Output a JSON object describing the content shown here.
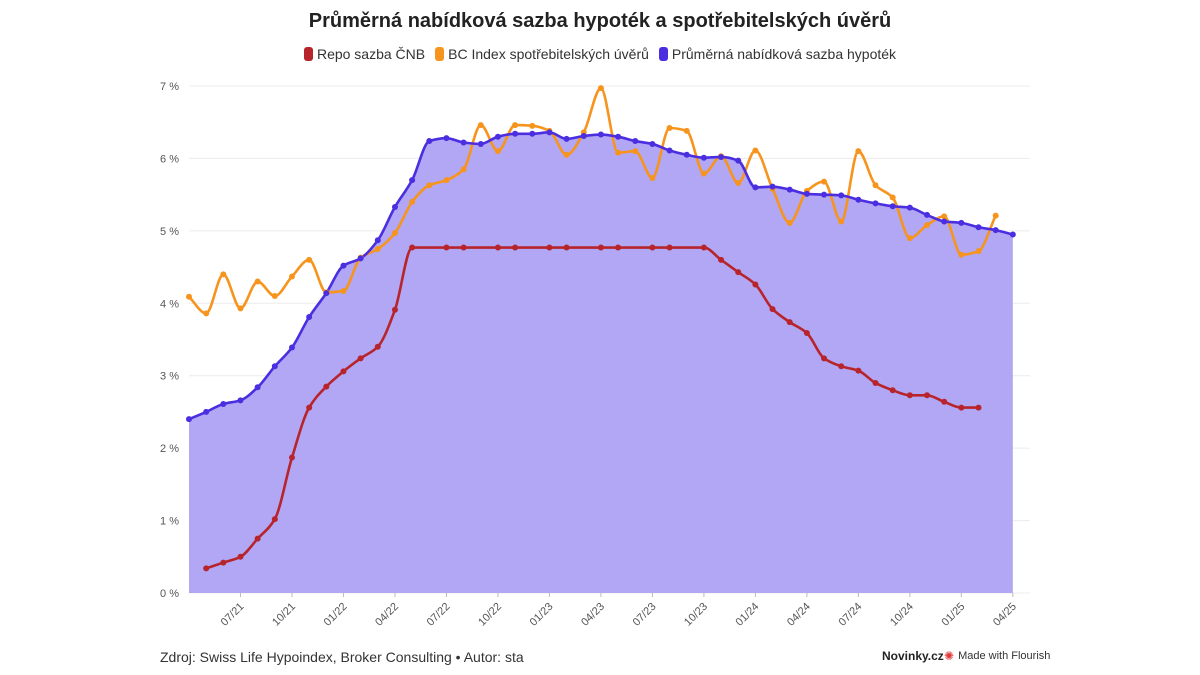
{
  "chart_data": {
    "type": "line",
    "title": "Průměrná nabídková sazba hypoték a spotřebitelských úvěrů",
    "ylim": [
      0,
      7
    ],
    "y_ticks": [
      0,
      1,
      2,
      3,
      4,
      5,
      6,
      7
    ],
    "y_tick_labels": [
      "0 %",
      "1 %",
      "2 %",
      "3 %",
      "4 %",
      "5 %",
      "6 %",
      "7 %"
    ],
    "x_range": [
      "2021-04",
      "2025-05"
    ],
    "x_ticks": [
      {
        "date": "2021-07",
        "label": "07/21"
      },
      {
        "date": "2021-10",
        "label": "10/21"
      },
      {
        "date": "2022-01",
        "label": "01/22"
      },
      {
        "date": "2022-04",
        "label": "04/22"
      },
      {
        "date": "2022-07",
        "label": "07/22"
      },
      {
        "date": "2022-10",
        "label": "10/22"
      },
      {
        "date": "2023-01",
        "label": "01/23"
      },
      {
        "date": "2023-04",
        "label": "04/23"
      },
      {
        "date": "2023-07",
        "label": "07/23"
      },
      {
        "date": "2023-10",
        "label": "10/23"
      },
      {
        "date": "2024-01",
        "label": "01/24"
      },
      {
        "date": "2024-04",
        "label": "04/24"
      },
      {
        "date": "2024-07",
        "label": "07/24"
      },
      {
        "date": "2024-10",
        "label": "10/24"
      },
      {
        "date": "2025-01",
        "label": "01/25"
      },
      {
        "date": "2025-04",
        "label": "04/25"
      }
    ],
    "legend_position": "top-center",
    "grid": true,
    "series": [
      {
        "name": "Repo sazba ČNB",
        "color": "#b8242b",
        "points": [
          [
            "2021-05",
            0.34
          ],
          [
            "2021-06",
            0.42
          ],
          [
            "2021-07",
            0.5
          ],
          [
            "2021-08",
            0.75
          ],
          [
            "2021-09",
            1.02
          ],
          [
            "2021-10",
            1.87
          ],
          [
            "2021-11",
            2.56
          ],
          [
            "2021-12",
            2.85
          ],
          [
            "2022-01",
            3.06
          ],
          [
            "2022-02",
            3.24
          ],
          [
            "2022-03",
            3.4
          ],
          [
            "2022-04",
            3.91
          ],
          [
            "2022-05",
            4.77
          ],
          [
            "2022-07",
            4.77
          ],
          [
            "2022-08",
            4.77
          ],
          [
            "2022-10",
            4.77
          ],
          [
            "2022-11",
            4.77
          ],
          [
            "2023-01",
            4.77
          ],
          [
            "2023-02",
            4.77
          ],
          [
            "2023-04",
            4.77
          ],
          [
            "2023-05",
            4.77
          ],
          [
            "2023-07",
            4.77
          ],
          [
            "2023-08",
            4.77
          ],
          [
            "2023-10",
            4.77
          ],
          [
            "2023-11",
            4.6
          ],
          [
            "2023-12",
            4.43
          ],
          [
            "2024-01",
            4.26
          ],
          [
            "2024-02",
            3.92
          ],
          [
            "2024-03",
            3.74
          ],
          [
            "2024-04",
            3.59
          ],
          [
            "2024-05",
            3.24
          ],
          [
            "2024-06",
            3.13
          ],
          [
            "2024-07",
            3.07
          ],
          [
            "2024-08",
            2.9
          ],
          [
            "2024-09",
            2.8
          ],
          [
            "2024-10",
            2.73
          ],
          [
            "2024-11",
            2.73
          ],
          [
            "2024-12",
            2.64
          ],
          [
            "2025-01",
            2.56
          ],
          [
            "2025-02",
            2.56
          ]
        ]
      },
      {
        "name": "BC Index spotřebitelských úvěrů",
        "color": "#f7941d",
        "points": [
          [
            "2021-04",
            4.09
          ],
          [
            "2021-05",
            3.86
          ],
          [
            "2021-06",
            4.4
          ],
          [
            "2021-07",
            3.93
          ],
          [
            "2021-08",
            4.3
          ],
          [
            "2021-09",
            4.1
          ],
          [
            "2021-10",
            4.37
          ],
          [
            "2021-11",
            4.6
          ],
          [
            "2021-12",
            4.15
          ],
          [
            "2022-01",
            4.17
          ],
          [
            "2022-02",
            4.63
          ],
          [
            "2022-03",
            4.75
          ],
          [
            "2022-04",
            4.97
          ],
          [
            "2022-05",
            5.4
          ],
          [
            "2022-06",
            5.63
          ],
          [
            "2022-07",
            5.7
          ],
          [
            "2022-08",
            5.85
          ],
          [
            "2022-09",
            6.46
          ],
          [
            "2022-10",
            6.1
          ],
          [
            "2022-11",
            6.46
          ],
          [
            "2022-12",
            6.45
          ],
          [
            "2023-01",
            6.38
          ],
          [
            "2023-02",
            6.05
          ],
          [
            "2023-03",
            6.36
          ],
          [
            "2023-04",
            6.97
          ],
          [
            "2023-05",
            6.08
          ],
          [
            "2023-06",
            6.1
          ],
          [
            "2023-07",
            5.73
          ],
          [
            "2023-08",
            6.42
          ],
          [
            "2023-09",
            6.38
          ],
          [
            "2023-10",
            5.79
          ],
          [
            "2023-11",
            6.03
          ],
          [
            "2023-12",
            5.66
          ],
          [
            "2024-01",
            6.11
          ],
          [
            "2024-02",
            5.58
          ],
          [
            "2024-03",
            5.11
          ],
          [
            "2024-04",
            5.55
          ],
          [
            "2024-05",
            5.68
          ],
          [
            "2024-06",
            5.13
          ],
          [
            "2024-07",
            6.1
          ],
          [
            "2024-08",
            5.63
          ],
          [
            "2024-09",
            5.46
          ],
          [
            "2024-10",
            4.9
          ],
          [
            "2024-11",
            5.08
          ],
          [
            "2024-12",
            5.2
          ],
          [
            "2025-01",
            4.67
          ],
          [
            "2025-02",
            4.72
          ],
          [
            "2025-03",
            5.21
          ]
        ]
      },
      {
        "name": "Průměrná nabídková sazba hypoték",
        "color": "#4a2ee0",
        "area_fill": "#b2a7f5",
        "points": [
          [
            "2021-04",
            2.4
          ],
          [
            "2021-05",
            2.5
          ],
          [
            "2021-06",
            2.61
          ],
          [
            "2021-07",
            2.66
          ],
          [
            "2021-08",
            2.84
          ],
          [
            "2021-09",
            3.13
          ],
          [
            "2021-10",
            3.39
          ],
          [
            "2021-11",
            3.81
          ],
          [
            "2021-12",
            4.14
          ],
          [
            "2022-01",
            4.52
          ],
          [
            "2022-02",
            4.62
          ],
          [
            "2022-03",
            4.87
          ],
          [
            "2022-04",
            5.33
          ],
          [
            "2022-05",
            5.7
          ],
          [
            "2022-06",
            6.24
          ],
          [
            "2022-07",
            6.28
          ],
          [
            "2022-08",
            6.22
          ],
          [
            "2022-09",
            6.2
          ],
          [
            "2022-10",
            6.3
          ],
          [
            "2022-11",
            6.34
          ],
          [
            "2022-12",
            6.34
          ],
          [
            "2023-01",
            6.36
          ],
          [
            "2023-02",
            6.27
          ],
          [
            "2023-03",
            6.31
          ],
          [
            "2023-04",
            6.33
          ],
          [
            "2023-05",
            6.3
          ],
          [
            "2023-06",
            6.24
          ],
          [
            "2023-07",
            6.2
          ],
          [
            "2023-08",
            6.11
          ],
          [
            "2023-09",
            6.05
          ],
          [
            "2023-10",
            6.01
          ],
          [
            "2023-11",
            6.02
          ],
          [
            "2023-12",
            5.97
          ],
          [
            "2024-01",
            5.6
          ],
          [
            "2024-02",
            5.61
          ],
          [
            "2024-03",
            5.57
          ],
          [
            "2024-04",
            5.51
          ],
          [
            "2024-05",
            5.5
          ],
          [
            "2024-06",
            5.49
          ],
          [
            "2024-07",
            5.43
          ],
          [
            "2024-08",
            5.38
          ],
          [
            "2024-09",
            5.34
          ],
          [
            "2024-10",
            5.32
          ],
          [
            "2024-11",
            5.22
          ],
          [
            "2024-12",
            5.13
          ],
          [
            "2025-01",
            5.11
          ],
          [
            "2025-02",
            5.05
          ],
          [
            "2025-03",
            5.01
          ],
          [
            "2025-04",
            4.95
          ]
        ]
      }
    ]
  },
  "footer": {
    "source": "Zdroj: Swiss Life Hypoindex, Broker Consulting • Autor: sta",
    "brand": "Novinky.cz",
    "made_with": "Made with Flourish"
  }
}
